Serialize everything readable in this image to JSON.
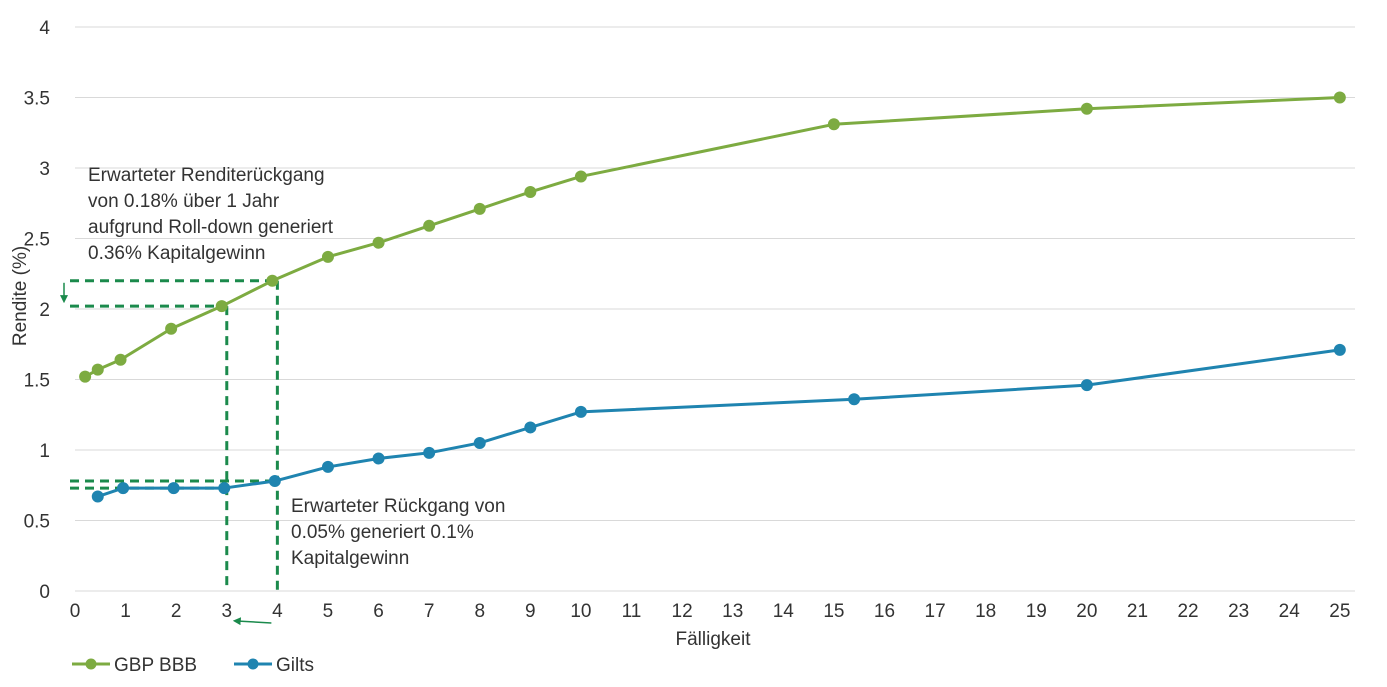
{
  "chart_data": {
    "type": "line",
    "xlabel": "Fälligkeit",
    "ylabel": "Rendite (%)",
    "xlim": [
      0,
      25.3
    ],
    "ylim": [
      0,
      4
    ],
    "x_ticks": [
      "0",
      "1",
      "2",
      "3",
      "4",
      "5",
      "6",
      "7",
      "8",
      "9",
      "10",
      "11",
      "12",
      "13",
      "14",
      "15",
      "16",
      "17",
      "18",
      "19",
      "20",
      "21",
      "22",
      "23",
      "24",
      "25"
    ],
    "y_ticks": [
      "0",
      "0.5",
      "1",
      "1.5",
      "2",
      "2.5",
      "3",
      "3.5",
      "4"
    ],
    "grid": true,
    "legend_position": "bottom-left",
    "series": [
      {
        "name": "GBP BBB",
        "color": "#7dab41",
        "x": [
          0.2,
          0.45,
          0.9,
          1.9,
          2.9,
          3.9,
          5.0,
          6.0,
          7.0,
          8.0,
          9.0,
          10.0,
          15.0,
          20.0,
          25.0
        ],
        "y": [
          1.52,
          1.57,
          1.64,
          1.86,
          2.02,
          2.2,
          2.37,
          2.47,
          2.59,
          2.71,
          2.83,
          2.94,
          3.31,
          3.42,
          3.5
        ]
      },
      {
        "name": "Gilts",
        "color": "#1f84b0",
        "x": [
          0.45,
          0.95,
          1.95,
          2.95,
          3.95,
          5.0,
          6.0,
          7.0,
          8.0,
          9.0,
          10.0,
          15.4,
          20.0,
          25.0
        ],
        "y": [
          0.67,
          0.73,
          0.73,
          0.73,
          0.78,
          0.88,
          0.94,
          0.98,
          1.05,
          1.16,
          1.27,
          1.36,
          1.46,
          1.71
        ]
      }
    ],
    "annotations": [
      {
        "id": "bbb",
        "lines": [
          "Erwarteter Renditerückgang",
          "von 0.18% über 1 Jahr",
          "aufgrund Roll-down generiert",
          "0.36% Kapitalgewinn"
        ],
        "from": {
          "x": 4,
          "y": 2.2
        },
        "to": {
          "x": 3,
          "y": 2.02
        }
      },
      {
        "id": "gilts",
        "lines": [
          "Erwarteter Rückgang von",
          "0.05% generiert 0.1%",
          "Kapitalgewinn"
        ],
        "from": {
          "x": 4,
          "y": 0.78
        },
        "to": {
          "x": 3,
          "y": 0.73
        }
      }
    ],
    "guide_color": "#1b8a4c"
  }
}
